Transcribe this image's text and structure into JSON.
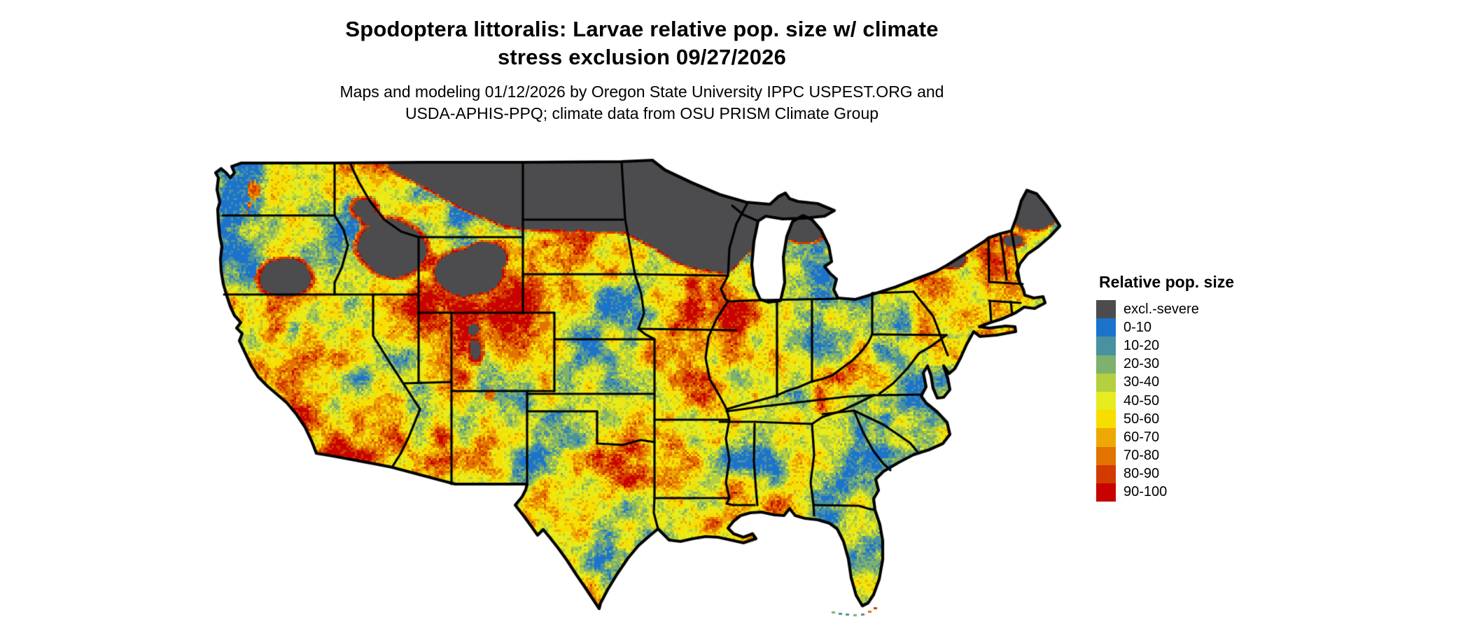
{
  "figure": {
    "title_line1": "Spodoptera littoralis: Larvae relative pop. size w/ climate",
    "title_line2": "stress exclusion 09/27/2026",
    "subtitle_line1": "Maps and modeling 01/12/2026 by Oregon State University IPPC USPEST.ORG and",
    "subtitle_line2": "USDA-APHIS-PPQ; climate data from OSU PRISM Climate Group"
  },
  "legend": {
    "title": "Relative pop. size",
    "items": [
      {
        "label": "excl.-severe",
        "color": "#4c4c4e"
      },
      {
        "label": "0-10",
        "color": "#1c73cb"
      },
      {
        "label": "10-20",
        "color": "#4a91a0"
      },
      {
        "label": "20-30",
        "color": "#7eb16e"
      },
      {
        "label": "30-40",
        "color": "#b4cf40"
      },
      {
        "label": "40-50",
        "color": "#e6ec1e"
      },
      {
        "label": "50-60",
        "color": "#f8de00"
      },
      {
        "label": "60-70",
        "color": "#eda806"
      },
      {
        "label": "70-80",
        "color": "#e27300"
      },
      {
        "label": "80-90",
        "color": "#d23b00"
      },
      {
        "label": "90-100",
        "color": "#c80200"
      }
    ]
  }
}
